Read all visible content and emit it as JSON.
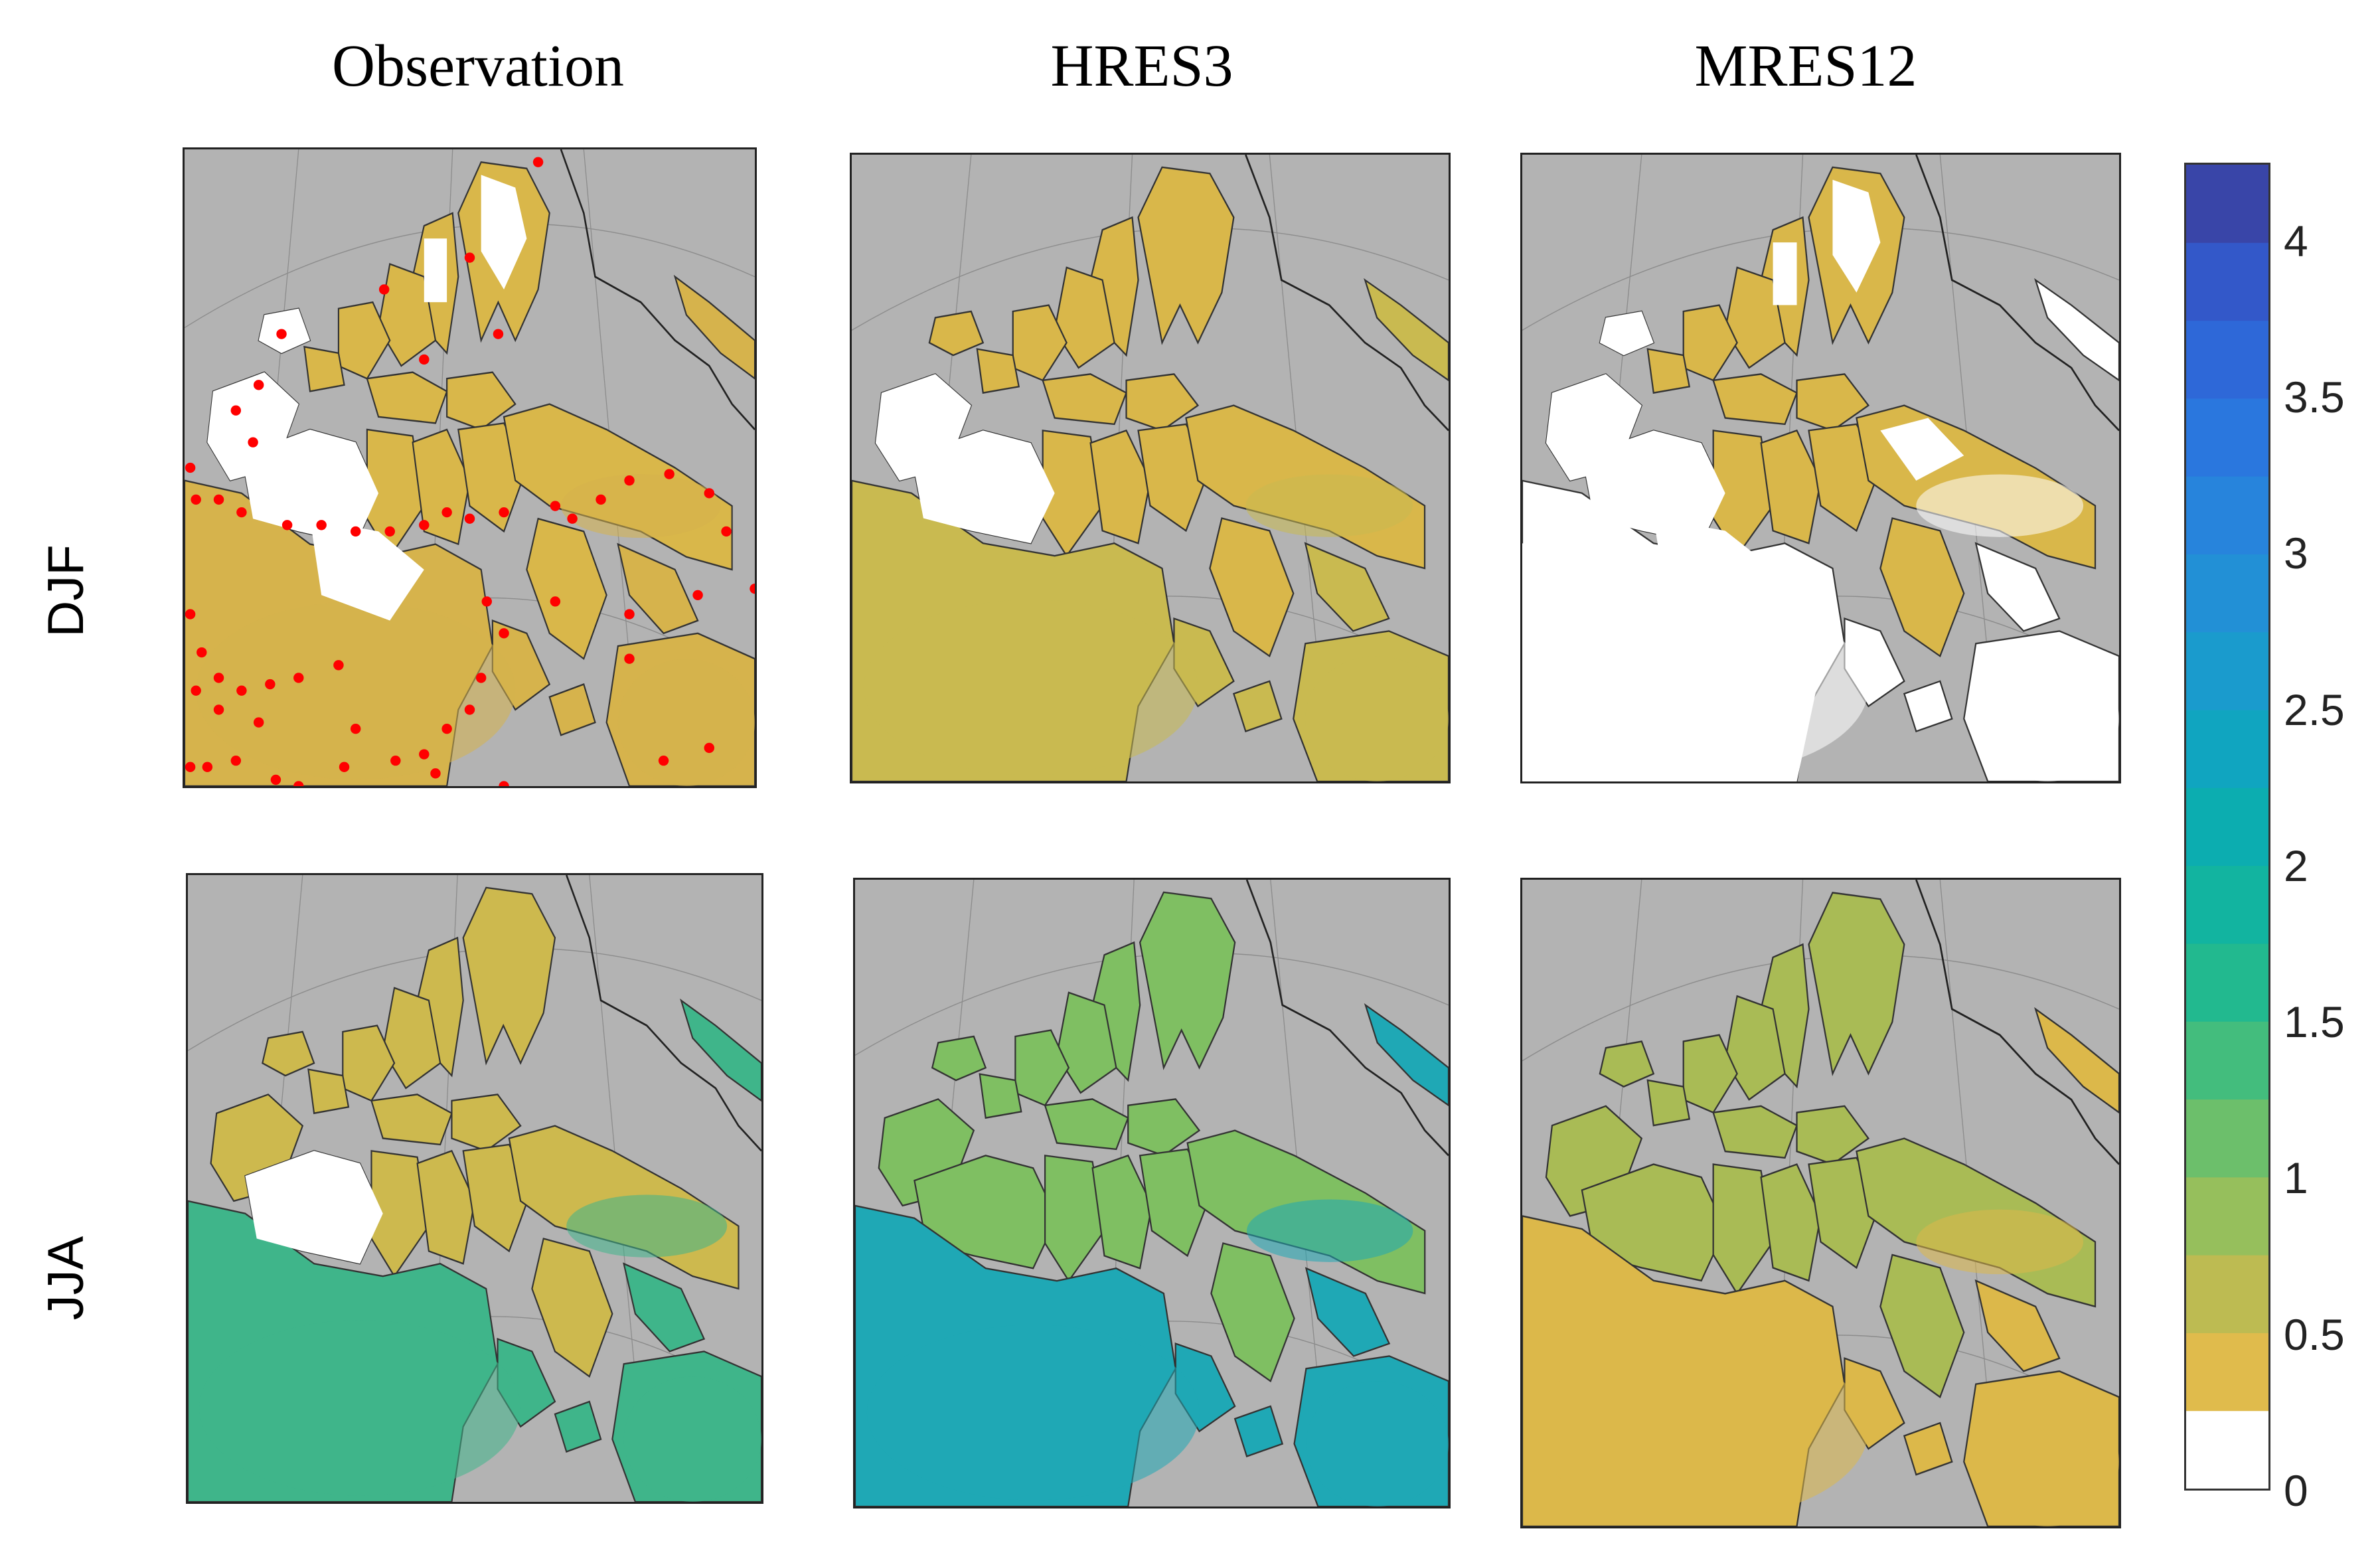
{
  "columns": [
    "Observation",
    "HRES3",
    "MRES12"
  ],
  "rows": [
    "DJF",
    "JJA"
  ],
  "colorbar": {
    "ticks": [
      "0",
      "0.5",
      "1",
      "1.5",
      "2",
      "2.5",
      "3",
      "3.5",
      "4"
    ],
    "range": [
      0,
      4.25
    ],
    "bin_step": 0.25,
    "colors": [
      "#ffffff",
      "#e0bb4c",
      "#bdbb52",
      "#96bf5c",
      "#6cbf6b",
      "#43bd7d",
      "#22b98f",
      "#12b4a0",
      "#0cadb0",
      "#10a5c0",
      "#1a9bcd",
      "#2290d6",
      "#2784dc",
      "#2a77de",
      "#2e68d8",
      "#3358c9",
      "#3945a8"
    ]
  },
  "map": {
    "ocean_color": "#b3b3b3",
    "station_marker_color": "#ff0000"
  },
  "panels": [
    {
      "id": "obs-djf",
      "column": "Observation",
      "row": "DJF",
      "land_tone": "#d9b74a",
      "white_cover": 0.45,
      "south_tone": "#d6b34c",
      "stations": true
    },
    {
      "id": "hres3-djf",
      "column": "HRES3",
      "row": "DJF",
      "land_tone": "#d9b74a",
      "white_cover": 0.15,
      "south_tone": "#c9ba50",
      "stations": false
    },
    {
      "id": "mres12-djf",
      "column": "MRES12",
      "row": "DJF",
      "land_tone": "#d9b74a",
      "white_cover": 0.55,
      "south_tone": "#ffffff",
      "stations": false
    },
    {
      "id": "obs-jja",
      "column": "Observation",
      "row": "JJA",
      "land_tone": "#cdb94e",
      "white_cover": 0.1,
      "south_tone": "#3fb58a",
      "stations": false
    },
    {
      "id": "hres3-jja",
      "column": "HRES3",
      "row": "JJA",
      "land_tone": "#7fbf62",
      "white_cover": 0.0,
      "south_tone": "#1fa8b5",
      "stations": false
    },
    {
      "id": "mres12-jja",
      "column": "MRES12",
      "row": "JJA",
      "land_tone": "#a9bb55",
      "white_cover": 0.02,
      "south_tone": "#dcb84a",
      "stations": false
    }
  ]
}
